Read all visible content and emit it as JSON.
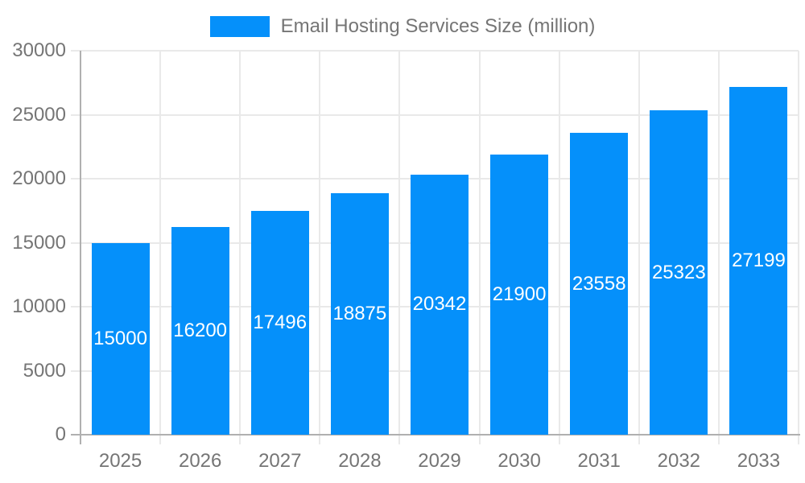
{
  "chart_data": {
    "type": "bar",
    "title": "",
    "legend_label": "Email Hosting Services Size (million)",
    "legend_position": "top",
    "categories": [
      "2025",
      "2026",
      "2027",
      "2028",
      "2029",
      "2030",
      "2031",
      "2032",
      "2033"
    ],
    "series": [
      {
        "name": "Email Hosting Services Size (million)",
        "values": [
          15000,
          16200,
          17496,
          18875,
          20342,
          21900,
          23558,
          25323,
          27199
        ]
      }
    ],
    "xlabel": "",
    "ylabel": "",
    "ylim": [
      0,
      30000
    ],
    "yticks": [
      0,
      5000,
      10000,
      15000,
      20000,
      25000,
      30000
    ],
    "grid": true,
    "value_labels_inside_bars": true
  },
  "colors": {
    "bar": "#0590FA",
    "grid": "#e9e9e9",
    "axis": "#b0b0b0",
    "tick_text": "#757575",
    "legend_text": "#757575",
    "value_text": "#ffffff",
    "background": "#ffffff"
  }
}
